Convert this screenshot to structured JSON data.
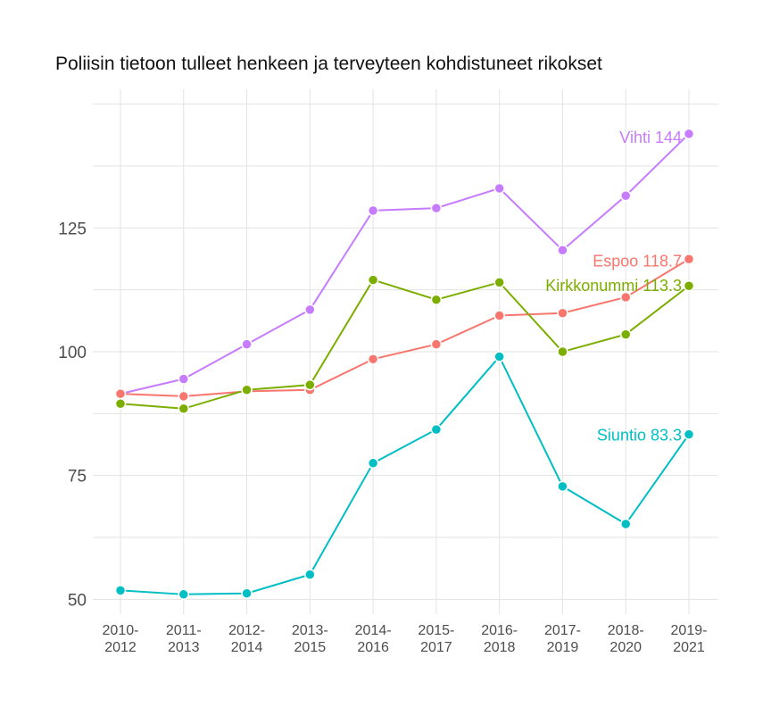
{
  "chart_data": {
    "type": "line",
    "title": "Poliisin tietoon tulleet henkeen ja terveyteen kohdistuneet rikokset",
    "xlabel": "",
    "ylabel": "",
    "ylim": [
      47,
      153
    ],
    "yticks": [
      50,
      75,
      100,
      125
    ],
    "grid": true,
    "legend": "none",
    "categories": [
      [
        "2010-",
        "2012"
      ],
      [
        "2011-",
        "2013"
      ],
      [
        "2012-",
        "2014"
      ],
      [
        "2013-",
        "2015"
      ],
      [
        "2014-",
        "2016"
      ],
      [
        "2015-",
        "2017"
      ],
      [
        "2016-",
        "2018"
      ],
      [
        "2017-",
        "2019"
      ],
      [
        "2018-",
        "2020"
      ],
      [
        "2019-",
        "2021"
      ]
    ],
    "series": [
      {
        "name": "Vihti",
        "color": "#c77cff",
        "values": [
          91.5,
          94.5,
          101.5,
          108.5,
          128.5,
          129,
          133,
          120.5,
          131.5,
          144
        ],
        "end_label": "Vihti 144"
      },
      {
        "name": "Espoo",
        "color": "#f8766d",
        "values": [
          91.5,
          91,
          92,
          92.3,
          98.5,
          101.5,
          107.3,
          107.8,
          111,
          118.7
        ],
        "end_label": "Espoo 118.7"
      },
      {
        "name": "Kirkkonummi",
        "color": "#7cae00",
        "values": [
          89.5,
          88.5,
          92.3,
          93.3,
          114.5,
          110.5,
          114,
          100,
          103.5,
          113.3
        ],
        "end_label": "Kirkkonummi 113.3"
      },
      {
        "name": "Siuntio",
        "color": "#00bfc4",
        "values": [
          51.8,
          51,
          51.2,
          55,
          77.5,
          84.3,
          99,
          72.8,
          65.2,
          83.3
        ],
        "end_label": "Siuntio 83.3"
      }
    ]
  }
}
